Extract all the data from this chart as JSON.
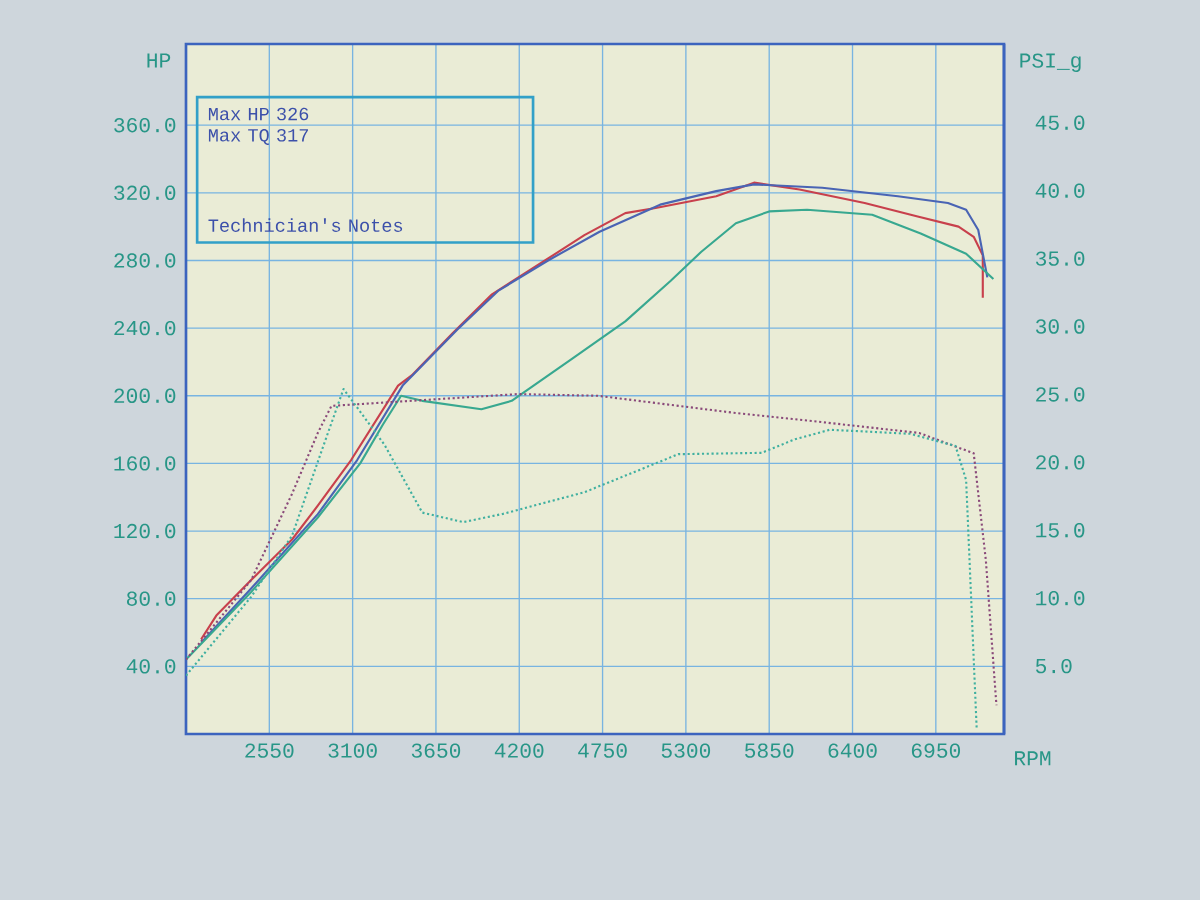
{
  "chart_data": {
    "type": "line",
    "xlabel": "RPM",
    "ylabel": "HP",
    "y2label": "PSI_g",
    "annotations": [
      "Max HP 326",
      "Max TQ 317",
      "Technician's Notes"
    ],
    "xlim": [
      2000,
      7400
    ],
    "ylim": [
      0,
      408
    ],
    "y2lim": [
      0,
      50.8
    ],
    "xticks": [
      2550,
      3100,
      3650,
      4200,
      4750,
      5300,
      5850,
      6400,
      6950
    ],
    "yticks": [
      {
        "value": 40,
        "label": "40.0"
      },
      {
        "value": 80,
        "label": "80.0"
      },
      {
        "value": 120,
        "label": "120.0"
      },
      {
        "value": 160,
        "label": "160.0"
      },
      {
        "value": 200,
        "label": "200.0"
      },
      {
        "value": 240,
        "label": "240.0"
      },
      {
        "value": 280,
        "label": "280.0"
      },
      {
        "value": 320,
        "label": "320.0"
      },
      {
        "value": 360,
        "label": "360.0"
      }
    ],
    "y2ticks": [
      {
        "value": 5,
        "label": "5.0"
      },
      {
        "value": 10,
        "label": "10.0"
      },
      {
        "value": 15,
        "label": "15.0"
      },
      {
        "value": 20,
        "label": "20.0"
      },
      {
        "value": 25,
        "label": "25.0"
      },
      {
        "value": 30,
        "label": "30.0"
      },
      {
        "value": 35,
        "label": "35.0"
      },
      {
        "value": 40,
        "label": "40.0"
      },
      {
        "value": 45,
        "label": "45.0"
      }
    ],
    "grid": true,
    "marker": "none",
    "series": [
      {
        "color": "#c8404c",
        "line_style": "solid",
        "x": [
          2100,
          2200,
          2430,
          2700,
          2870,
          3090,
          3400,
          3490,
          3760,
          4020,
          4370,
          4630,
          4900,
          5100,
          5500,
          5750,
          6050,
          6480,
          6830,
          7100,
          7200,
          7260,
          7260
        ],
        "values": [
          56,
          70,
          91,
          115,
          135,
          162,
          206,
          212,
          237,
          260,
          280,
          295,
          308,
          311,
          318,
          326,
          322,
          314,
          306,
          300,
          294,
          283,
          258
        ]
      },
      {
        "color": "#4a64b4",
        "line_style": "solid",
        "x": [
          2100,
          2430,
          2870,
          3130,
          3430,
          3790,
          4060,
          4390,
          4730,
          5130,
          5500,
          5750,
          6200,
          6700,
          7030,
          7150,
          7230,
          7290
        ],
        "values": [
          54,
          86,
          130,
          162,
          206,
          239,
          262,
          280,
          297,
          313,
          321,
          325,
          323,
          318,
          314,
          310,
          298,
          270
        ]
      },
      {
        "color": "#38a890",
        "line_style": "solid",
        "x": [
          2000,
          2430,
          2870,
          3150,
          3300,
          3420,
          3560,
          3950,
          4150,
          4550,
          4900,
          5200,
          5400,
          5630,
          5850,
          6100,
          6530,
          6850,
          7150,
          7330
        ],
        "values": [
          44,
          84,
          128,
          160,
          183,
          200,
          197,
          192,
          197,
          222,
          244,
          268,
          285,
          302,
          309,
          310,
          307,
          296,
          284,
          269
        ]
      },
      {
        "color": "#8a4a7a",
        "line_style": "dotted",
        "x": [
          2000,
          2430,
          2700,
          2870,
          2960,
          3310,
          4190,
          4720,
          5610,
          6140,
          6840,
          7200,
          7280,
          7350
        ],
        "values": [
          44,
          91,
          142,
          178,
          194,
          196,
          201,
          200,
          190,
          185,
          178,
          166,
          103,
          17
        ]
      },
      {
        "color": "#40b0a0",
        "line_style": "dotted",
        "axis": "y2",
        "x": [
          2000,
          2430,
          2700,
          2900,
          3040,
          3310,
          3560,
          3830,
          4090,
          4630,
          5250,
          5800,
          6020,
          6250,
          6780,
          7080,
          7150,
          7220
        ],
        "values": [
          4.3,
          10.1,
          14.6,
          21,
          25.4,
          21.3,
          16.3,
          15.6,
          16.2,
          17.8,
          20.6,
          20.7,
          21.7,
          22.4,
          22.1,
          21.2,
          18.7,
          0.3
        ]
      }
    ]
  }
}
